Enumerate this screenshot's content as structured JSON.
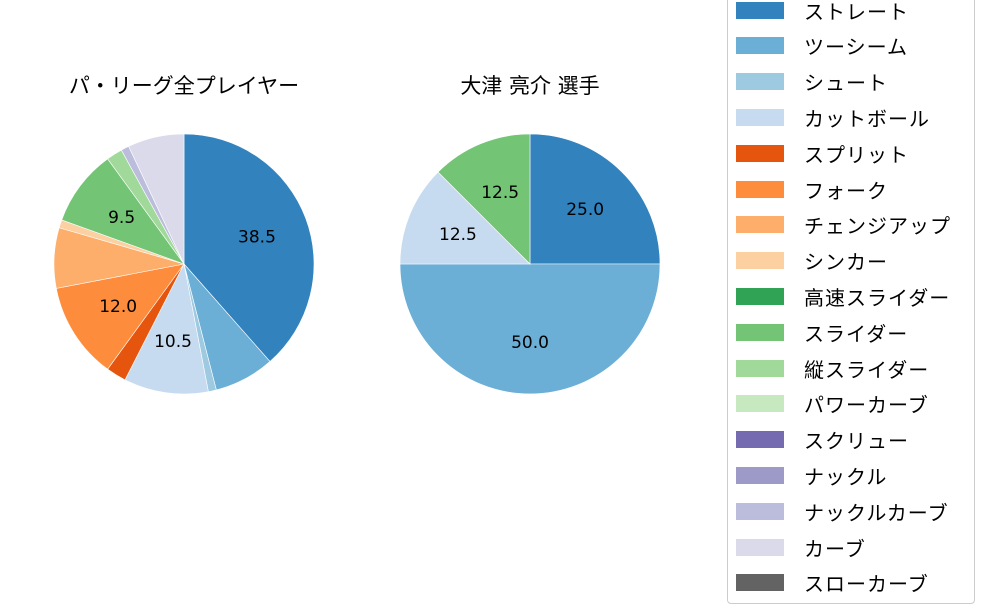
{
  "chart_data": [
    {
      "type": "pie",
      "title": "パ・リーグ全プレイヤー",
      "start": "top, clockwise",
      "categories": [
        "ストレート",
        "ツーシーム",
        "シュート",
        "カットボール",
        "スプリット",
        "フォーク",
        "チェンジアップ",
        "シンカー",
        "スライダー",
        "縦スライダー",
        "ナックルカーブ",
        "カーブ"
      ],
      "values": [
        38.5,
        7.5,
        1.0,
        10.5,
        2.5,
        12.0,
        7.5,
        1.0,
        9.5,
        2.0,
        1.0,
        7.0
      ],
      "labels_shown": [
        "38.5",
        "",
        "",
        "10.5",
        "",
        "12.0",
        "",
        "",
        "9.5",
        "",
        "",
        ""
      ],
      "colors": [
        "#3182bd",
        "#6baed6",
        "#9ecae1",
        "#c6dbef",
        "#e6550d",
        "#fd8d3c",
        "#fdae6b",
        "#fdd0a2",
        "#74c476",
        "#a1d99b",
        "#bcbddc",
        "#dadaeb"
      ]
    },
    {
      "type": "pie",
      "title": "大津 亮介  選手",
      "start": "top, clockwise",
      "categories": [
        "ストレート",
        "ツーシーム",
        "カットボール",
        "スライダー"
      ],
      "values": [
        25.0,
        50.0,
        12.5,
        12.5
      ],
      "labels_shown": [
        "25.0",
        "50.0",
        "12.5",
        "12.5"
      ],
      "colors": [
        "#3182bd",
        "#6baed6",
        "#c6dbef",
        "#74c476"
      ]
    }
  ],
  "legend": {
    "items": [
      {
        "label": "ストレート",
        "color": "#3182bd"
      },
      {
        "label": "ツーシーム",
        "color": "#6baed6"
      },
      {
        "label": "シュート",
        "color": "#9ecae1"
      },
      {
        "label": "カットボール",
        "color": "#c6dbef"
      },
      {
        "label": "スプリット",
        "color": "#e6550d"
      },
      {
        "label": "フォーク",
        "color": "#fd8d3c"
      },
      {
        "label": "チェンジアップ",
        "color": "#fdae6b"
      },
      {
        "label": "シンカー",
        "color": "#fdd0a2"
      },
      {
        "label": "高速スライダー",
        "color": "#31a354"
      },
      {
        "label": "スライダー",
        "color": "#74c476"
      },
      {
        "label": "縦スライダー",
        "color": "#a1d99b"
      },
      {
        "label": "パワーカーブ",
        "color": "#c7e9c0"
      },
      {
        "label": "スクリュー",
        "color": "#756bb1"
      },
      {
        "label": "ナックル",
        "color": "#9e9ac8"
      },
      {
        "label": "ナックルカーブ",
        "color": "#bcbddc"
      },
      {
        "label": "カーブ",
        "color": "#dadaeb"
      },
      {
        "label": "スローカーブ",
        "color": "#636363"
      }
    ]
  }
}
